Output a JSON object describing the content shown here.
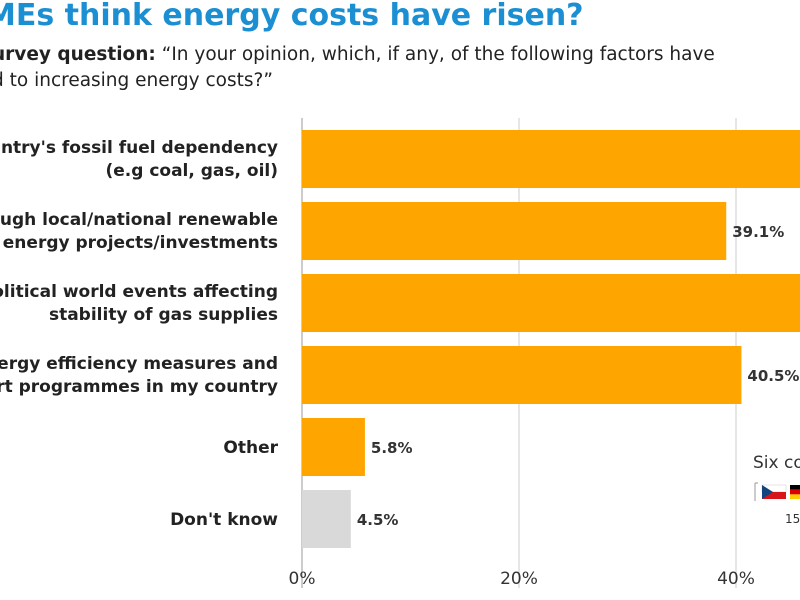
{
  "header": {
    "title": "MEs think energy costs have risen?",
    "survey_label": "urvey question:",
    "question_line1": "“In your opinion, which, if any, of the following factors have",
    "question_line2": "d to increasing energy costs?”"
  },
  "colors": {
    "accent_bar": "#ffa500",
    "neutral_bar": "#d9d9d9",
    "title": "#1b8fd2",
    "grid": "#e6e6e6"
  },
  "chart_data": {
    "type": "bar",
    "orientation": "horizontal",
    "categories": [
      [
        "ountry's fossil fuel dependency",
        "(e.g coal, gas, oil)"
      ],
      [
        "ough local/national renewable",
        "energy projects/investments"
      ],
      [
        "olitical world events affecting",
        "stability of gas supplies"
      ],
      [
        "nergy efficiency measures and",
        "ort programmes in my country"
      ],
      [
        "Other"
      ],
      [
        "Don't know"
      ]
    ],
    "values": [
      null,
      39.1,
      null,
      40.5,
      5.8,
      4.5
    ],
    "value_labels": [
      "",
      "39.1%",
      "",
      "40.5%",
      "5.8%",
      "4.5%"
    ],
    "bar_colors": [
      "#ffa500",
      "#ffa500",
      "#ffa500",
      "#ffa500",
      "#ffa500",
      "#d9d9d9"
    ],
    "x_ticks": [
      0,
      20,
      40
    ],
    "x_tick_labels": [
      "0%",
      "20%",
      "40%"
    ],
    "grid": true
  },
  "note": {
    "title": "Six co",
    "date": "15"
  }
}
